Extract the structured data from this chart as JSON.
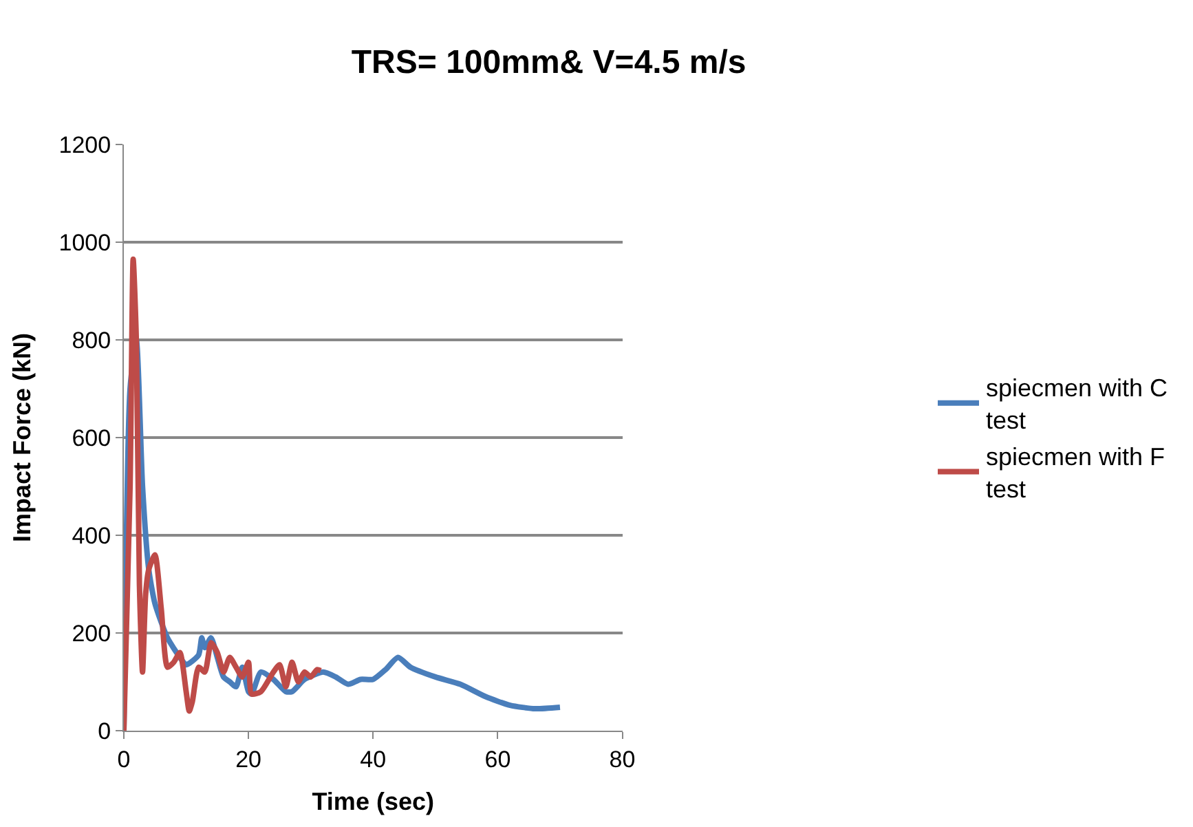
{
  "chart_data": {
    "type": "line",
    "title": "TRS= 100mm& V=4.5 m/s",
    "xlabel": "Time (sec)",
    "ylabel": "Impact Force (kN)",
    "xlim": [
      0,
      80
    ],
    "xticks": [
      0,
      20,
      40,
      60,
      80
    ],
    "ylim": [
      0,
      1200
    ],
    "yticks": [
      0,
      200,
      400,
      600,
      800,
      1000,
      1200
    ],
    "grid": "y",
    "legend": "right",
    "marker": "none",
    "line_style": "solid",
    "series": [
      {
        "name": "spiecmen with C test",
        "color": "#4a7ebb",
        "x": [
          0,
          1,
          2,
          3,
          4,
          5,
          7,
          9,
          10,
          12,
          12.5,
          13,
          14,
          15,
          16,
          17,
          18,
          19,
          20,
          20.5,
          22,
          24,
          26,
          27,
          29,
          32,
          34,
          36,
          38,
          40,
          42,
          44,
          46,
          50,
          54,
          58,
          62,
          66,
          70
        ],
        "values": [
          0,
          700,
          800,
          500,
          330,
          260,
          190,
          150,
          135,
          155,
          190,
          170,
          190,
          150,
          110,
          100,
          90,
          130,
          80,
          75,
          120,
          105,
          80,
          80,
          105,
          120,
          110,
          95,
          105,
          105,
          125,
          150,
          130,
          110,
          95,
          70,
          52,
          45,
          48
        ]
      },
      {
        "name": "spiecmen with F test",
        "color": "#be4b48",
        "x": [
          0,
          1,
          1.5,
          2,
          2.5,
          3,
          3.5,
          4,
          5,
          6,
          7,
          8,
          9,
          10,
          10.5,
          11,
          12,
          13,
          14,
          15,
          16,
          17,
          18,
          19,
          20,
          20.5,
          22,
          24,
          25,
          26,
          27,
          28,
          29,
          30,
          31,
          31.6
        ],
        "values": [
          0,
          500,
          965,
          800,
          300,
          120,
          280,
          330,
          360,
          250,
          130,
          140,
          160,
          80,
          40,
          60,
          130,
          120,
          180,
          160,
          120,
          150,
          130,
          110,
          140,
          75,
          80,
          120,
          135,
          90,
          140,
          100,
          120,
          110,
          125,
          123
        ]
      }
    ]
  }
}
